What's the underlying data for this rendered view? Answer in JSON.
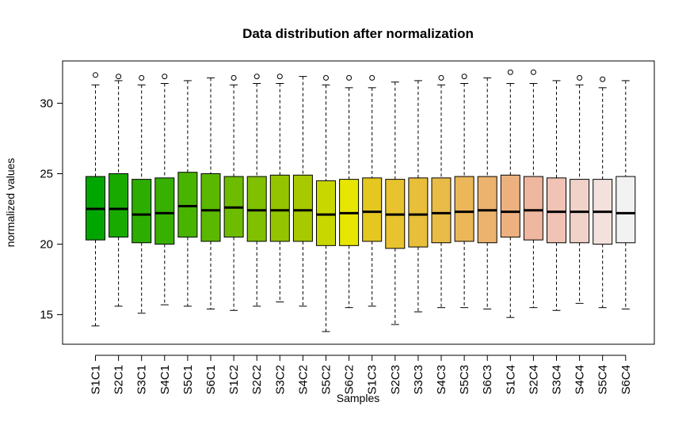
{
  "chart_data": {
    "type": "boxplot",
    "title": "Data distribution after normalization",
    "xlabel": "Samples",
    "ylabel": "normalized values",
    "ylim": [
      12.9,
      33.0
    ],
    "yticks": [
      15,
      20,
      25,
      30
    ],
    "grid": false,
    "legend": "none",
    "categories": [
      "S1C1",
      "S2C1",
      "S3C1",
      "S4C1",
      "S5C1",
      "S6C1",
      "S1C2",
      "S2C2",
      "S3C2",
      "S4C2",
      "S5C2",
      "S6C2",
      "S1C3",
      "S2C3",
      "S3C3",
      "S4C3",
      "S5C3",
      "S6C3",
      "S1C4",
      "S2C4",
      "S3C4",
      "S4C4",
      "S5C4",
      "S6C4"
    ],
    "colors": [
      "#00A600",
      "#19AA00",
      "#2DAD00",
      "#37B000",
      "#48B400",
      "#5BB800",
      "#6EBC00",
      "#80C000",
      "#94C400",
      "#A8C800",
      "#C9D700",
      "#E6E600",
      "#E5C722",
      "#E8C32E",
      "#E8BE3A",
      "#E9BB47",
      "#EBB759",
      "#ECB36E",
      "#EDB180",
      "#EFB7A0",
      "#F0C3B4",
      "#F1D2C8",
      "#F2E1DC",
      "#F2F2F2"
    ],
    "boxes": [
      {
        "min": 14.2,
        "q1": 20.3,
        "median": 22.5,
        "q3": 24.8,
        "max": 31.3,
        "outliers": [
          32.0
        ]
      },
      {
        "min": 15.6,
        "q1": 20.5,
        "median": 22.5,
        "q3": 25.0,
        "max": 31.6,
        "outliers": [
          31.9
        ]
      },
      {
        "min": 15.1,
        "q1": 20.1,
        "median": 22.1,
        "q3": 24.6,
        "max": 31.3,
        "outliers": [
          31.8
        ]
      },
      {
        "min": 15.7,
        "q1": 20.0,
        "median": 22.2,
        "q3": 24.7,
        "max": 31.4,
        "outliers": [
          31.9
        ]
      },
      {
        "min": 15.6,
        "q1": 20.5,
        "median": 22.7,
        "q3": 25.1,
        "max": 31.6,
        "outliers": []
      },
      {
        "min": 15.4,
        "q1": 20.2,
        "median": 22.4,
        "q3": 25.0,
        "max": 31.8,
        "outliers": []
      },
      {
        "min": 15.3,
        "q1": 20.5,
        "median": 22.6,
        "q3": 24.8,
        "max": 31.3,
        "outliers": [
          31.8
        ]
      },
      {
        "min": 15.6,
        "q1": 20.2,
        "median": 22.4,
        "q3": 24.8,
        "max": 31.4,
        "outliers": [
          31.9
        ]
      },
      {
        "min": 15.9,
        "q1": 20.2,
        "median": 22.4,
        "q3": 24.9,
        "max": 31.4,
        "outliers": [
          31.9
        ]
      },
      {
        "min": 15.6,
        "q1": 20.2,
        "median": 22.4,
        "q3": 24.9,
        "max": 31.9,
        "outliers": []
      },
      {
        "min": 13.8,
        "q1": 19.9,
        "median": 22.1,
        "q3": 24.5,
        "max": 31.3,
        "outliers": [
          31.8
        ]
      },
      {
        "min": 15.5,
        "q1": 19.9,
        "median": 22.2,
        "q3": 24.6,
        "max": 31.1,
        "outliers": [
          31.8
        ]
      },
      {
        "min": 15.6,
        "q1": 20.2,
        "median": 22.3,
        "q3": 24.7,
        "max": 31.1,
        "outliers": [
          31.8
        ]
      },
      {
        "min": 14.3,
        "q1": 19.7,
        "median": 22.1,
        "q3": 24.6,
        "max": 31.5,
        "outliers": []
      },
      {
        "min": 15.2,
        "q1": 19.8,
        "median": 22.1,
        "q3": 24.7,
        "max": 31.6,
        "outliers": []
      },
      {
        "min": 15.5,
        "q1": 20.1,
        "median": 22.2,
        "q3": 24.7,
        "max": 31.3,
        "outliers": [
          31.8
        ]
      },
      {
        "min": 15.5,
        "q1": 20.2,
        "median": 22.3,
        "q3": 24.8,
        "max": 31.4,
        "outliers": [
          31.9
        ]
      },
      {
        "min": 15.4,
        "q1": 20.1,
        "median": 22.4,
        "q3": 24.8,
        "max": 31.8,
        "outliers": []
      },
      {
        "min": 14.8,
        "q1": 20.5,
        "median": 22.3,
        "q3": 24.9,
        "max": 31.4,
        "outliers": [
          32.2
        ]
      },
      {
        "min": 15.5,
        "q1": 20.3,
        "median": 22.4,
        "q3": 24.8,
        "max": 31.4,
        "outliers": [
          32.2
        ]
      },
      {
        "min": 15.3,
        "q1": 20.1,
        "median": 22.3,
        "q3": 24.7,
        "max": 31.6,
        "outliers": []
      },
      {
        "min": 15.8,
        "q1": 20.1,
        "median": 22.3,
        "q3": 24.6,
        "max": 31.3,
        "outliers": [
          31.8
        ]
      },
      {
        "min": 15.5,
        "q1": 20.0,
        "median": 22.3,
        "q3": 24.6,
        "max": 31.1,
        "outliers": [
          31.7
        ]
      },
      {
        "min": 15.4,
        "q1": 20.1,
        "median": 22.2,
        "q3": 24.8,
        "max": 31.6,
        "outliers": []
      }
    ]
  }
}
